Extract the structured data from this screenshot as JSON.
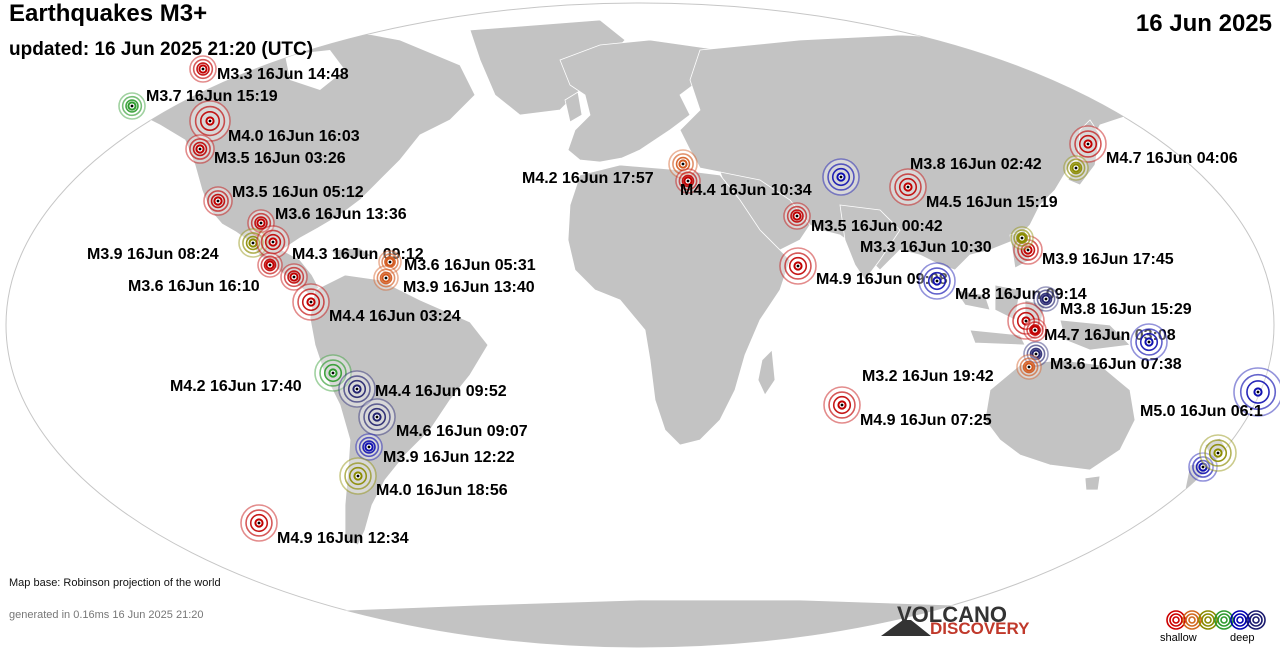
{
  "header": {
    "title": "Earthquakes M3+",
    "updated": "updated: 16 Jun 2025 21:20 (UTC)",
    "date": "16 Jun 2025"
  },
  "footer": {
    "map_base": "Map base: Robinson projection of the world",
    "generated": "generated in 0.16ms 16 Jun 2025 21:20"
  },
  "logo": {
    "top": "VOLCANO",
    "bottom": "DISCOVERY"
  },
  "legend": {
    "shallow": "shallow",
    "deep": "deep",
    "colors": [
      "#cc0000",
      "#d2691e",
      "#8b8b00",
      "#2e9b2e",
      "#0000b0",
      "#1a1a6e"
    ]
  },
  "quakes": [
    {
      "label": "M3.3 16Jun 14:48",
      "depth": "shallow"
    },
    {
      "label": "M3.7 16Jun 15:19",
      "depth": "middle"
    },
    {
      "label": "M4.0 16Jun 16:03",
      "depth": "shallow"
    },
    {
      "label": "M3.5 16Jun 03:26",
      "depth": "shallow"
    },
    {
      "label": "M3.5 16Jun 05:12",
      "depth": "shallow"
    },
    {
      "label": "M3.6 16Jun 13:36",
      "depth": "shallow"
    },
    {
      "label": "M3.9 16Jun 08:24",
      "depth": "intermediate"
    },
    {
      "label": "M4.3 16Jun 09:12",
      "depth": "shallow"
    },
    {
      "label": "M3.6 16Jun 05:31",
      "depth": "near-surface"
    },
    {
      "label": "M3.6 16Jun 16:10",
      "depth": "shallow"
    },
    {
      "label": "M3.9 16Jun 13:40",
      "depth": "near-surface"
    },
    {
      "label": "M4.4 16Jun 03:24",
      "depth": "shallow"
    },
    {
      "label": "M4.2 16Jun 17:40",
      "depth": "middle"
    },
    {
      "label": "M4.4 16Jun 09:52",
      "depth": "very-deep"
    },
    {
      "label": "M4.6 16Jun 09:07",
      "depth": "very-deep"
    },
    {
      "label": "M3.9 16Jun 12:22",
      "depth": "deep"
    },
    {
      "label": "M4.0 16Jun 18:56",
      "depth": "intermediate"
    },
    {
      "label": "M4.9 16Jun 12:34",
      "depth": "shallow"
    },
    {
      "label": "M4.2 16Jun 17:57",
      "depth": "near-surface"
    },
    {
      "label": "M4.4 16Jun 10:34",
      "depth": "shallow"
    },
    {
      "label": "M3.8 16Jun 02:42",
      "depth": "deep"
    },
    {
      "label": "M4.5 16Jun 15:19",
      "depth": "shallow"
    },
    {
      "label": "M3.5 16Jun 00:42",
      "depth": "shallow"
    },
    {
      "label": "M4.7 16Jun 04:06",
      "depth": "shallow"
    },
    {
      "label": "M3.3 16Jun 10:30",
      "depth": "intermediate"
    },
    {
      "label": "M3.9 16Jun 17:45",
      "depth": "shallow"
    },
    {
      "label": "M4.9 16Jun 09:08",
      "depth": "shallow"
    },
    {
      "label": "M4.8 16Jun 09:14",
      "depth": "deep"
    },
    {
      "label": "M3.8 16Jun 15:29",
      "depth": "very-deep"
    },
    {
      "label": "M4.7 16Jun 03:08",
      "depth": "shallow"
    },
    {
      "label": "M3.6 16Jun 07:38",
      "depth": "very-deep"
    },
    {
      "label": "M3.2 16Jun 19:42",
      "depth": "near-surface"
    },
    {
      "label": "M4.9 16Jun 07:25",
      "depth": "shallow"
    },
    {
      "label": "M5.0 16Jun 06:1",
      "depth": "deep"
    },
    {
      "label": "",
      "depth": "deep"
    },
    {
      "label": "",
      "depth": "intermediate"
    },
    {
      "label": "",
      "depth": "deep"
    },
    {
      "label": "",
      "depth": "intermediate"
    },
    {
      "label": "",
      "depth": "shallow"
    },
    {
      "label": "",
      "depth": "shallow"
    }
  ]
}
